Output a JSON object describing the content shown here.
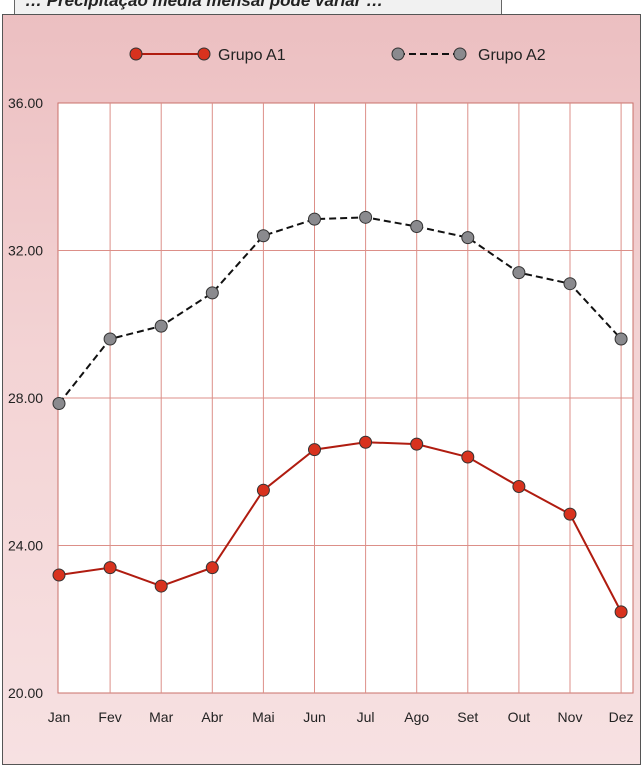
{
  "header": {
    "text": "… Precipitação média mensal pode variar …"
  },
  "chart_data": {
    "type": "line",
    "title": "",
    "xlabel": "",
    "ylabel": "",
    "categories": [
      "Jan",
      "Fev",
      "Mar",
      "Abr",
      "Mai",
      "Jun",
      "Jul",
      "Ago",
      "Set",
      "Out",
      "Nov",
      "Dez"
    ],
    "ylim": [
      20,
      36
    ],
    "yticks": [
      "20.00",
      "24.00",
      "28.00",
      "32.00",
      "36.00"
    ],
    "grid": true,
    "legend_position": "top",
    "series": [
      {
        "name": "Grupo A1",
        "line_style": "solid",
        "color": "#b01c10",
        "marker_color": "#d8321e",
        "values": [
          23.2,
          23.4,
          22.9,
          23.4,
          25.5,
          26.6,
          26.8,
          26.75,
          26.4,
          25.6,
          24.85,
          22.2
        ]
      },
      {
        "name": "Grupo A2",
        "line_style": "dashed",
        "color": "#111111",
        "marker_color": "#8a8a8e",
        "values": [
          27.85,
          29.6,
          29.95,
          30.85,
          32.4,
          32.85,
          32.9,
          32.65,
          32.35,
          31.4,
          31.1,
          29.6
        ]
      }
    ]
  }
}
